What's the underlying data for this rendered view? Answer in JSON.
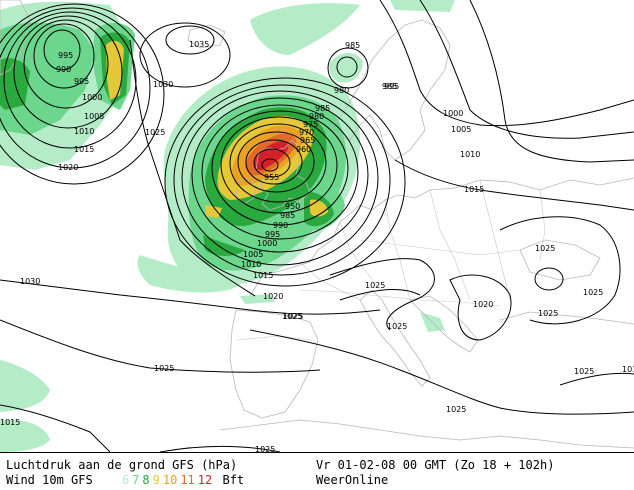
{
  "footer": {
    "left_line1": "Luchtdruk aan de grond GFS (hPa)",
    "left_line2_prefix": "Wind 10m GFS",
    "right_line1": "Vr 01-02-08 00 GMT (Zo 18 + 102h)",
    "right_line2": "WeerOnline",
    "bft_unit": "Bft",
    "bft_scale": [
      {
        "label": "6",
        "color": "#b4ecc8"
      },
      {
        "label": "7",
        "color": "#6cd68c"
      },
      {
        "label": "8",
        "color": "#2aaa3e"
      },
      {
        "label": "9",
        "color": "#e4c83a"
      },
      {
        "label": "10",
        "color": "#eaa224"
      },
      {
        "label": "11",
        "color": "#e06a2a"
      },
      {
        "label": "12",
        "color": "#d4202a"
      }
    ]
  },
  "isobar_labels": [
    {
      "text": "995"
    },
    {
      "text": "990"
    },
    {
      "text": "995"
    },
    {
      "text": "1000"
    },
    {
      "text": "1005"
    },
    {
      "text": "1010"
    },
    {
      "text": "1015"
    },
    {
      "text": "1020"
    },
    {
      "text": "1035"
    },
    {
      "text": "1030"
    },
    {
      "text": "1025"
    },
    {
      "text": "985"
    },
    {
      "text": "980"
    },
    {
      "text": "985"
    },
    {
      "text": "985"
    },
    {
      "text": "980"
    },
    {
      "text": "975"
    },
    {
      "text": "970"
    },
    {
      "text": "965"
    },
    {
      "text": "960"
    },
    {
      "text": "955"
    },
    {
      "text": "950"
    },
    {
      "text": "985"
    },
    {
      "text": "990"
    },
    {
      "text": "995"
    },
    {
      "text": "1000"
    },
    {
      "text": "1005"
    },
    {
      "text": "1010"
    },
    {
      "text": "1015"
    },
    {
      "text": "1020"
    },
    {
      "text": "1025"
    },
    {
      "text": "995"
    },
    {
      "text": "1000"
    },
    {
      "text": "1005"
    },
    {
      "text": "1010"
    },
    {
      "text": "1015"
    },
    {
      "text": "1025"
    },
    {
      "text": "1025"
    },
    {
      "text": "1025"
    },
    {
      "text": "1020"
    },
    {
      "text": "1025"
    },
    {
      "text": "1025"
    },
    {
      "text": "1025"
    },
    {
      "text": "1030"
    },
    {
      "text": "1025"
    },
    {
      "text": "1025"
    },
    {
      "text": "1015"
    },
    {
      "text": "1025"
    },
    {
      "text": "1025"
    },
    {
      "text": "1010"
    }
  ]
}
